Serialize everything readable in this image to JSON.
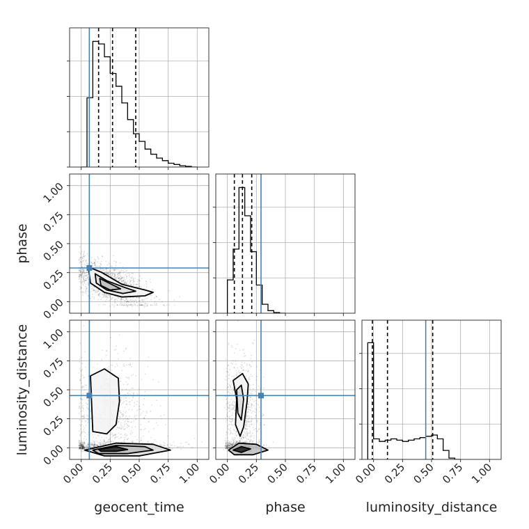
{
  "chart_data": {
    "type": "corner",
    "parameters": [
      "geocent_time",
      "phase",
      "luminosity_distance"
    ],
    "xlabels": [
      "geocent_time",
      "phase",
      "luminosity_distance"
    ],
    "ylabels": [
      "",
      "phase",
      "luminosity_distance"
    ],
    "ticks": {
      "values": [
        0.0,
        0.25,
        0.5,
        0.75,
        1.0
      ],
      "labels": [
        "0.00",
        "0.25",
        "0.50",
        "0.75",
        "1.00"
      ]
    },
    "range": {
      "geocent_time": [
        -0.1,
        1.1
      ],
      "phase": [
        -0.1,
        1.1
      ],
      "luminosity_distance": [
        -0.1,
        1.1
      ]
    },
    "grid": true,
    "truths": {
      "geocent_time": 0.07,
      "phase": 0.29,
      "luminosity_distance": 0.45,
      "color": "#4682b4"
    },
    "quantiles": {
      "geocent_time": [
        0.15,
        0.27,
        0.47
      ],
      "phase": [
        0.06,
        0.13,
        0.21
      ],
      "luminosity_distance": [
        -0.01,
        0.12,
        0.51
      ]
    },
    "histograms": {
      "geocent_time": {
        "edges": [
          0.0,
          0.05,
          0.1,
          0.15,
          0.2,
          0.25,
          0.3,
          0.35,
          0.4,
          0.45,
          0.5,
          0.55,
          0.6,
          0.65,
          0.7,
          0.75,
          0.8,
          0.85,
          0.9,
          0.95,
          1.0
        ],
        "counts": [
          0,
          0.54,
          0.98,
          0.96,
          0.86,
          0.73,
          0.63,
          0.5,
          0.37,
          0.26,
          0.2,
          0.14,
          0.1,
          0.07,
          0.05,
          0.03,
          0.02,
          0.01,
          0.005,
          0
        ]
      },
      "phase": {
        "edges": [
          0.0,
          0.05,
          0.1,
          0.15,
          0.2,
          0.25,
          0.3,
          0.35,
          0.4,
          0.45,
          0.5
        ],
        "counts": [
          0.26,
          0.5,
          0.98,
          0.76,
          0.48,
          0.22,
          0.07,
          0.02,
          0.005,
          0
        ]
      },
      "luminosity_distance": {
        "edges": [
          -0.05,
          0.0,
          0.05,
          0.1,
          0.15,
          0.2,
          0.25,
          0.3,
          0.35,
          0.4,
          0.45,
          0.5,
          0.55,
          0.6,
          0.65,
          0.7,
          0.75
        ],
        "counts": [
          0.91,
          0.16,
          0.14,
          0.15,
          0.16,
          0.15,
          0.14,
          0.15,
          0.16,
          0.17,
          0.18,
          0.19,
          0.16,
          0.07,
          0.01,
          0
        ]
      }
    },
    "histogram_max": {
      "geocent_time": 1.0,
      "phase": 1.0,
      "luminosity_distance": 1.0
    },
    "contours": [
      {
        "x": "geocent_time",
        "y": "phase",
        "levels": [
          [
            [
              0.06,
              0.3
            ],
            [
              0.18,
              0.25
            ],
            [
              0.35,
              0.15
            ],
            [
              0.55,
              0.1
            ],
            [
              0.62,
              0.08
            ],
            [
              0.55,
              0.05
            ],
            [
              0.35,
              0.04
            ],
            [
              0.2,
              0.08
            ],
            [
              0.08,
              0.16
            ]
          ],
          [
            [
              0.12,
              0.24
            ],
            [
              0.22,
              0.18
            ],
            [
              0.38,
              0.12
            ],
            [
              0.47,
              0.09
            ],
            [
              0.36,
              0.07
            ],
            [
              0.22,
              0.1
            ],
            [
              0.13,
              0.16
            ]
          ],
          [
            [
              0.16,
              0.2
            ],
            [
              0.24,
              0.16
            ],
            [
              0.34,
              0.11
            ],
            [
              0.25,
              0.1
            ],
            [
              0.17,
              0.14
            ]
          ]
        ]
      },
      {
        "x": "geocent_time",
        "y": "luminosity_distance",
        "levels": [
          [
            [
              0.08,
              0.62
            ],
            [
              0.2,
              0.68
            ],
            [
              0.32,
              0.6
            ],
            [
              0.33,
              0.4
            ],
            [
              0.3,
              0.2
            ],
            [
              0.22,
              0.12
            ],
            [
              0.1,
              0.14
            ],
            [
              0.09,
              0.38
            ]
          ],
          [
            [
              0.03,
              -0.02
            ],
            [
              0.3,
              0.04
            ],
            [
              0.62,
              0.03
            ],
            [
              0.77,
              -0.02
            ],
            [
              0.5,
              -0.07
            ],
            [
              0.2,
              -0.07
            ]
          ],
          [
            [
              0.1,
              -0.02
            ],
            [
              0.3,
              0.02
            ],
            [
              0.55,
              0.01
            ],
            [
              0.62,
              -0.02
            ],
            [
              0.4,
              -0.05
            ],
            [
              0.15,
              -0.05
            ]
          ],
          [
            [
              0.15,
              -0.015
            ],
            [
              0.3,
              0.01
            ],
            [
              0.4,
              -0.015
            ],
            [
              0.3,
              -0.03
            ],
            [
              0.17,
              -0.03
            ]
          ]
        ]
      },
      {
        "x": "phase",
        "y": "luminosity_distance",
        "levels": [
          [
            [
              0.05,
              0.58
            ],
            [
              0.13,
              0.64
            ],
            [
              0.18,
              0.55
            ],
            [
              0.17,
              0.4
            ],
            [
              0.14,
              0.18
            ],
            [
              0.11,
              0.1
            ],
            [
              0.07,
              0.2
            ],
            [
              0.08,
              0.42
            ]
          ],
          [
            [
              0.08,
              0.5
            ],
            [
              0.12,
              0.54
            ],
            [
              0.14,
              0.42
            ],
            [
              0.12,
              0.24
            ],
            [
              0.09,
              0.3
            ]
          ],
          [
            [
              0.01,
              -0.02
            ],
            [
              0.1,
              0.04
            ],
            [
              0.25,
              0.03
            ],
            [
              0.35,
              -0.02
            ],
            [
              0.22,
              -0.06
            ],
            [
              0.06,
              -0.06
            ]
          ],
          [
            [
              0.05,
              -0.02
            ],
            [
              0.12,
              0.01
            ],
            [
              0.2,
              -0.01
            ],
            [
              0.12,
              -0.04
            ]
          ]
        ]
      }
    ],
    "scatter_clouds": [
      {
        "x": "geocent_time",
        "y": "phase",
        "cx": 0.25,
        "cy": 0.15,
        "sx": 0.17,
        "sy": 0.08,
        "n": 1400,
        "slope": -0.35
      },
      {
        "x": "geocent_time",
        "y": "luminosity_distance",
        "cx": 0.25,
        "cy": 0.3,
        "sx": 0.17,
        "sy": 0.24,
        "n": 1400,
        "slope": 0
      },
      {
        "x": "phase",
        "y": "luminosity_distance",
        "cx": 0.12,
        "cy": 0.3,
        "sx": 0.07,
        "sy": 0.24,
        "n": 1400,
        "slope": 0
      }
    ]
  }
}
